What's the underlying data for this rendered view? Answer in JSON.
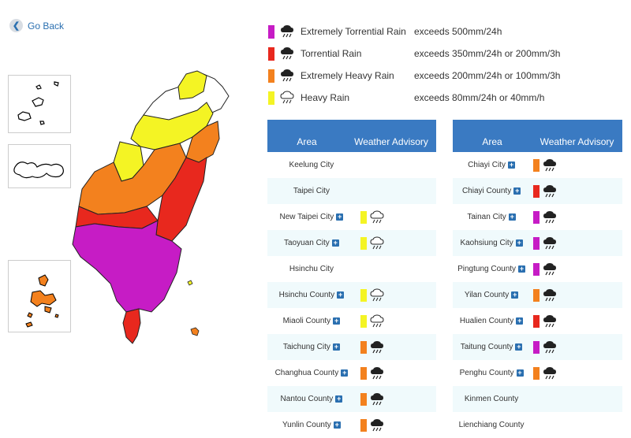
{
  "nav": {
    "back_label": "Go Back"
  },
  "colors": {
    "extremely_torrential": "#c61cc5",
    "torrential": "#e8281e",
    "extremely_heavy": "#f3811e",
    "heavy": "#f4f424",
    "header_bg": "#3a7ac2"
  },
  "legend": [
    {
      "level": "extremely_torrential",
      "color": "#c61cc5",
      "icon": "storm-rain-icon",
      "label": "Extremely Torrential Rain",
      "threshold": "exceeds 500mm/24h"
    },
    {
      "level": "torrential",
      "color": "#e8281e",
      "icon": "storm-rain-icon",
      "label": "Torrential Rain",
      "threshold": "exceeds 350mm/24h or 200mm/3h"
    },
    {
      "level": "extremely_heavy",
      "color": "#f3811e",
      "icon": "storm-rain-icon",
      "label": "Extremely Heavy Rain",
      "threshold": "exceeds 200mm/24h or 100mm/3h"
    },
    {
      "level": "heavy",
      "color": "#f4f424",
      "icon": "light-rain-icon",
      "label": "Heavy Rain",
      "threshold": "exceeds 80mm/24h or 40mm/h"
    }
  ],
  "table_headers": {
    "area": "Area",
    "advisory": "Weather Advisory"
  },
  "left_table": [
    {
      "area": "Keelung City",
      "expandable": false,
      "advisory": null
    },
    {
      "area": "Taipei City",
      "expandable": false,
      "advisory": null
    },
    {
      "area": "New Taipei City",
      "expandable": true,
      "advisory": "heavy"
    },
    {
      "area": "Taoyuan City",
      "expandable": true,
      "advisory": "heavy"
    },
    {
      "area": "Hsinchu City",
      "expandable": false,
      "advisory": null
    },
    {
      "area": "Hsinchu County",
      "expandable": true,
      "advisory": "heavy"
    },
    {
      "area": "Miaoli County",
      "expandable": true,
      "advisory": "heavy"
    },
    {
      "area": "Taichung City",
      "expandable": true,
      "advisory": "extremely_heavy"
    },
    {
      "area": "Changhua County",
      "expandable": true,
      "advisory": "extremely_heavy"
    },
    {
      "area": "Nantou County",
      "expandable": true,
      "advisory": "extremely_heavy"
    },
    {
      "area": "Yunlin County",
      "expandable": true,
      "advisory": "extremely_heavy"
    }
  ],
  "right_table": [
    {
      "area": "Chiayi City",
      "expandable": true,
      "advisory": "extremely_heavy"
    },
    {
      "area": "Chiayi County",
      "expandable": true,
      "advisory": "torrential"
    },
    {
      "area": "Tainan City",
      "expandable": true,
      "advisory": "extremely_torrential"
    },
    {
      "area": "Kaohsiung City",
      "expandable": true,
      "advisory": "extremely_torrential"
    },
    {
      "area": "Pingtung County",
      "expandable": true,
      "advisory": "extremely_torrential"
    },
    {
      "area": "Yilan County",
      "expandable": true,
      "advisory": "extremely_heavy"
    },
    {
      "area": "Hualien County",
      "expandable": true,
      "advisory": "torrential"
    },
    {
      "area": "Taitung County",
      "expandable": true,
      "advisory": "extremely_torrential"
    },
    {
      "area": "Penghu County",
      "expandable": true,
      "advisory": "extremely_heavy"
    },
    {
      "area": "Kinmen County",
      "expandable": false,
      "advisory": null
    },
    {
      "area": "Lienchiang County",
      "expandable": false,
      "advisory": null
    }
  ]
}
